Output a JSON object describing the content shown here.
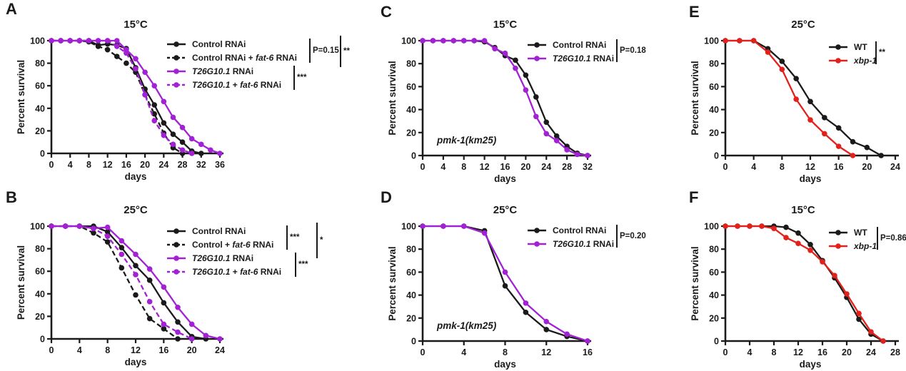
{
  "figure": {
    "background": "#ffffff"
  },
  "colors": {
    "black": "#1a1a1a",
    "purple": "#A321D4",
    "red": "#E3211C"
  },
  "chart_data": [
    {
      "id": "A",
      "label": "A",
      "type": "line",
      "title": "15°C",
      "xlabel": "days",
      "ylabel": "Percent survival",
      "xlim": [
        0,
        36
      ],
      "xtick_step": 4,
      "ylim": [
        0,
        100
      ],
      "ytick_step": 20,
      "annotation": null,
      "series": [
        {
          "name": "Control RNAi",
          "color": "#1a1a1a",
          "dash": false,
          "x": [
            0,
            2,
            4,
            6,
            8,
            10,
            12,
            14,
            16,
            18,
            20,
            22,
            24,
            26,
            28,
            30,
            32
          ],
          "y": [
            100,
            100,
            100,
            100,
            100,
            96,
            97,
            96,
            93,
            76,
            57,
            43,
            27,
            17,
            10,
            2,
            0
          ]
        },
        {
          "name": "Control RNAi + *fat-6* RNAi",
          "color": "#1a1a1a",
          "dash": true,
          "x": [
            0,
            2,
            4,
            6,
            8,
            10,
            12,
            14,
            16,
            18,
            20,
            22,
            24,
            26,
            28
          ],
          "y": [
            100,
            100,
            100,
            100,
            99,
            95,
            92,
            86,
            80,
            72,
            52,
            35,
            18,
            5,
            0
          ]
        },
        {
          "name": "*T26G10.1* RNAi",
          "color": "#A321D4",
          "dash": false,
          "x": [
            0,
            2,
            4,
            6,
            8,
            10,
            12,
            14,
            16,
            18,
            20,
            22,
            24,
            26,
            28,
            30,
            32,
            34,
            36
          ],
          "y": [
            100,
            100,
            100,
            100,
            100,
            100,
            100,
            100,
            92,
            84,
            72,
            60,
            46,
            32,
            23,
            13,
            8,
            3,
            0
          ]
        },
        {
          "name": "*T26G10.1* + *fat-6* RNAi",
          "color": "#A321D4",
          "dash": true,
          "x": [
            0,
            2,
            4,
            6,
            8,
            10,
            12,
            14,
            16,
            18,
            20,
            22,
            24,
            26,
            28,
            30
          ],
          "y": [
            100,
            100,
            100,
            100,
            100,
            100,
            100,
            95,
            89,
            75,
            52,
            29,
            16,
            8,
            3,
            0
          ]
        }
      ],
      "stats": [
        {
          "text": "P=0.15"
        },
        {
          "text": "**"
        },
        {
          "text": "***"
        }
      ]
    },
    {
      "id": "B",
      "label": "B",
      "type": "line",
      "title": "25°C",
      "xlabel": "days",
      "ylabel": "Percent survival",
      "xlim": [
        0,
        24
      ],
      "xtick_step": 4,
      "ylim": [
        0,
        100
      ],
      "ytick_step": 20,
      "annotation": null,
      "series": [
        {
          "name": "Control RNAi",
          "color": "#1a1a1a",
          "dash": false,
          "x": [
            0,
            2,
            4,
            6,
            8,
            10,
            12,
            14,
            16,
            18,
            20,
            22
          ],
          "y": [
            100,
            100,
            100,
            100,
            95,
            81,
            65,
            52,
            32,
            15,
            2,
            0
          ]
        },
        {
          "name": "Control + *fat-6* RNAi",
          "color": "#1a1a1a",
          "dash": true,
          "x": [
            0,
            2,
            4,
            6,
            8,
            10,
            12,
            14,
            16,
            18
          ],
          "y": [
            100,
            100,
            100,
            94,
            86,
            63,
            39,
            18,
            9,
            0
          ]
        },
        {
          "name": "*T26G10.1* RNAi",
          "color": "#A321D4",
          "dash": false,
          "x": [
            0,
            2,
            4,
            6,
            8,
            10,
            12,
            14,
            16,
            18,
            20,
            22,
            24
          ],
          "y": [
            100,
            100,
            100,
            98,
            99,
            87,
            75,
            62,
            46,
            28,
            13,
            3,
            0
          ]
        },
        {
          "name": "*T26G10.1* + *fat-6* RNAi",
          "color": "#A321D4",
          "dash": true,
          "x": [
            0,
            2,
            4,
            6,
            8,
            10,
            12,
            14,
            16,
            18,
            20
          ],
          "y": [
            100,
            100,
            100,
            98,
            91,
            75,
            57,
            33,
            13,
            6,
            0
          ]
        }
      ],
      "stats": [
        {
          "text": "***"
        },
        {
          "text": "*"
        },
        {
          "text": "***"
        }
      ]
    },
    {
      "id": "C",
      "label": "C",
      "type": "line",
      "title": "15°C",
      "xlabel": "days",
      "ylabel": "Percent survival",
      "xlim": [
        0,
        32
      ],
      "xtick_step": 4,
      "ylim": [
        0,
        100
      ],
      "ytick_step": 20,
      "annotation": "pmk-1(km25)",
      "series": [
        {
          "name": "Control RNAi",
          "color": "#1a1a1a",
          "dash": false,
          "x": [
            0,
            2,
            4,
            6,
            8,
            10,
            12,
            14,
            16,
            18,
            20,
            22,
            24,
            26,
            28,
            30,
            32
          ],
          "y": [
            100,
            100,
            100,
            100,
            100,
            100,
            99,
            94,
            87,
            83,
            70,
            51,
            29,
            17,
            8,
            2,
            0
          ]
        },
        {
          "name": "*T26G10.1* RNAi",
          "color": "#A321D4",
          "dash": false,
          "x": [
            0,
            2,
            4,
            6,
            8,
            10,
            12,
            14,
            16,
            18,
            20,
            22,
            24,
            26,
            28,
            30,
            32
          ],
          "y": [
            100,
            100,
            100,
            100,
            100,
            100,
            100,
            93,
            89,
            76,
            57,
            34,
            19,
            13,
            5,
            1,
            0
          ]
        }
      ],
      "stats": [
        {
          "text": "P=0.18"
        }
      ]
    },
    {
      "id": "D",
      "label": "D",
      "type": "line",
      "title": "25°C",
      "xlabel": "days",
      "ylabel": "Percent survival",
      "xlim": [
        0,
        16
      ],
      "xtick_step": 4,
      "ylim": [
        0,
        100
      ],
      "ytick_step": 20,
      "annotation": "pmk-1(km25)",
      "series": [
        {
          "name": "Control RNAi",
          "color": "#1a1a1a",
          "dash": false,
          "x": [
            0,
            2,
            4,
            6,
            8,
            10,
            12,
            14,
            16
          ],
          "y": [
            100,
            100,
            100,
            96,
            48,
            25,
            10,
            4,
            0
          ]
        },
        {
          "name": "*T26G10.1* RNAi",
          "color": "#A321D4",
          "dash": false,
          "x": [
            0,
            2,
            4,
            6,
            8,
            10,
            12,
            14,
            16
          ],
          "y": [
            100,
            100,
            100,
            94,
            60,
            33,
            17,
            6,
            0
          ]
        }
      ],
      "stats": [
        {
          "text": "P=0.20"
        }
      ]
    },
    {
      "id": "E",
      "label": "E",
      "type": "line",
      "title": "25°C",
      "xlabel": "days",
      "ylabel": "Percent survival",
      "xlim": [
        0,
        24
      ],
      "xtick_step": 4,
      "ylim": [
        0,
        100
      ],
      "ytick_step": 20,
      "annotation": null,
      "series": [
        {
          "name": "WT",
          "color": "#1a1a1a",
          "dash": false,
          "x": [
            0,
            2,
            4,
            6,
            8,
            10,
            12,
            14,
            16,
            18,
            20,
            22
          ],
          "y": [
            100,
            100,
            100,
            93,
            82,
            67,
            47,
            33,
            24,
            12,
            7,
            0
          ]
        },
        {
          "name": "*xbp-1*",
          "color": "#E3211C",
          "dash": false,
          "x": [
            0,
            2,
            4,
            6,
            8,
            10,
            12,
            14,
            16,
            18
          ],
          "y": [
            100,
            100,
            100,
            90,
            75,
            49,
            31,
            19,
            8,
            0
          ]
        }
      ],
      "stats": [
        {
          "text": "**"
        }
      ]
    },
    {
      "id": "F",
      "label": "F",
      "type": "line",
      "title": "15°C",
      "xlabel": "days",
      "ylabel": "Percent survival",
      "xlim": [
        0,
        28
      ],
      "xtick_step": 4,
      "ylim": [
        0,
        100
      ],
      "ytick_step": 20,
      "annotation": null,
      "series": [
        {
          "name": "WT",
          "color": "#1a1a1a",
          "dash": false,
          "x": [
            0,
            2,
            4,
            6,
            8,
            10,
            12,
            14,
            16,
            18,
            20,
            22,
            24,
            26
          ],
          "y": [
            100,
            100,
            100,
            100,
            100,
            99,
            94,
            84,
            70,
            55,
            38,
            19,
            6,
            0
          ]
        },
        {
          "name": "*xbp-1*",
          "color": "#E3211C",
          "dash": false,
          "x": [
            0,
            2,
            4,
            6,
            8,
            10,
            12,
            14,
            16,
            18,
            20,
            22,
            24,
            26
          ],
          "y": [
            100,
            100,
            100,
            100,
            98,
            90,
            85,
            79,
            69,
            57,
            41,
            24,
            8,
            0
          ]
        }
      ],
      "stats": [
        {
          "text": "P=0.86"
        }
      ]
    }
  ]
}
